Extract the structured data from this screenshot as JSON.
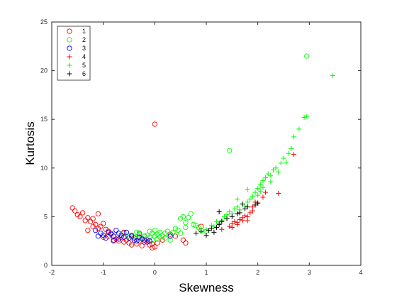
{
  "chart_data": {
    "type": "scatter",
    "title": "",
    "xlabel": "Skewness",
    "ylabel": "Kurtosis",
    "xlim": [
      -2,
      4
    ],
    "ylim": [
      0,
      25
    ],
    "x_ticks": [
      "-2",
      "-1",
      "0",
      "1",
      "2",
      "3",
      "4"
    ],
    "y_ticks": [
      "0",
      "5",
      "10",
      "15",
      "20",
      "25"
    ],
    "grid": false,
    "legend_position": "top-left",
    "series": [
      {
        "name": "1",
        "marker": "circle",
        "color": "#ff0000",
        "points": [
          [
            -1.6,
            5.9
          ],
          [
            -1.55,
            5.6
          ],
          [
            -1.5,
            5.2
          ],
          [
            -1.45,
            5.0
          ],
          [
            -1.4,
            5.4
          ],
          [
            -1.35,
            4.6
          ],
          [
            -1.3,
            4.9
          ],
          [
            -1.25,
            4.5
          ],
          [
            -1.2,
            4.8
          ],
          [
            -1.15,
            4.2
          ],
          [
            -1.1,
            5.3
          ],
          [
            -1.05,
            4.0
          ],
          [
            -1.2,
            4.0
          ],
          [
            -1.0,
            4.3
          ],
          [
            -1.1,
            3.8
          ],
          [
            -1.3,
            3.6
          ],
          [
            -0.95,
            3.7
          ],
          [
            -0.9,
            3.5
          ],
          [
            -0.85,
            3.3
          ],
          [
            -0.8,
            3.0
          ],
          [
            -0.75,
            2.7
          ],
          [
            -0.7,
            2.5
          ],
          [
            -0.65,
            2.9
          ],
          [
            -0.6,
            2.4
          ],
          [
            -0.55,
            2.6
          ],
          [
            -0.5,
            2.3
          ],
          [
            -0.45,
            2.1
          ],
          [
            -0.4,
            2.8
          ],
          [
            -0.35,
            2.2
          ],
          [
            -0.3,
            2.5
          ],
          [
            -0.25,
            2.0
          ],
          [
            -0.2,
            2.4
          ],
          [
            -0.15,
            2.6
          ],
          [
            -0.1,
            2.1
          ],
          [
            -0.05,
            2.2
          ],
          [
            0.0,
            1.9
          ],
          [
            0.05,
            2.3
          ],
          [
            -0.05,
            1.8
          ],
          [
            0.0,
            14.5
          ],
          [
            -0.3,
            3.3
          ],
          [
            -0.6,
            3.4
          ],
          [
            -0.9,
            3.0
          ],
          [
            -1.0,
            2.9
          ],
          [
            -0.8,
            2.5
          ],
          [
            0.15,
            2.6
          ],
          [
            0.3,
            3.2
          ],
          [
            0.4,
            3.0
          ],
          [
            0.55,
            2.6
          ],
          [
            0.6,
            2.3
          ],
          [
            0.9,
            4.0
          ],
          [
            -0.2,
            3.0
          ],
          [
            -0.45,
            3.1
          ]
        ]
      },
      {
        "name": "2",
        "marker": "circle",
        "color": "#00ff00",
        "points": [
          [
            -0.6,
            3.3
          ],
          [
            -0.5,
            3.0
          ],
          [
            -0.4,
            2.9
          ],
          [
            -0.35,
            3.4
          ],
          [
            -0.3,
            3.2
          ],
          [
            -0.25,
            2.8
          ],
          [
            -0.2,
            3.0
          ],
          [
            -0.15,
            3.1
          ],
          [
            -0.1,
            3.5
          ],
          [
            -0.1,
            2.9
          ],
          [
            -0.05,
            3.3
          ],
          [
            0.0,
            3.0
          ],
          [
            0.0,
            3.6
          ],
          [
            0.05,
            2.7
          ],
          [
            0.05,
            3.2
          ],
          [
            0.1,
            3.4
          ],
          [
            0.1,
            2.9
          ],
          [
            0.15,
            3.1
          ],
          [
            0.2,
            3.3
          ],
          [
            0.2,
            2.8
          ],
          [
            0.25,
            3.5
          ],
          [
            0.3,
            3.0
          ],
          [
            0.35,
            3.4
          ],
          [
            0.4,
            3.8
          ],
          [
            0.45,
            3.6
          ],
          [
            0.5,
            3.3
          ],
          [
            0.5,
            4.8
          ],
          [
            0.55,
            5.0
          ],
          [
            0.6,
            4.4
          ],
          [
            0.65,
            4.9
          ],
          [
            0.7,
            5.3
          ],
          [
            0.75,
            4.2
          ],
          [
            0.8,
            4.1
          ],
          [
            0.85,
            3.9
          ],
          [
            0.9,
            3.6
          ],
          [
            1.0,
            3.5
          ],
          [
            0.3,
            2.6
          ],
          [
            -0.05,
            2.6
          ],
          [
            0.6,
            3.9
          ],
          [
            1.45,
            11.8
          ],
          [
            2.95,
            21.5
          ]
        ]
      },
      {
        "name": "3",
        "marker": "circle",
        "color": "#0000ff",
        "points": [
          [
            -1.1,
            3.0
          ],
          [
            -1.05,
            3.3
          ],
          [
            -1.0,
            3.1
          ],
          [
            -0.95,
            2.8
          ],
          [
            -0.9,
            3.4
          ],
          [
            -0.85,
            3.2
          ],
          [
            -0.8,
            3.0
          ],
          [
            -0.75,
            3.6
          ],
          [
            -0.7,
            3.3
          ],
          [
            -0.7,
            2.7
          ],
          [
            -0.65,
            3.1
          ],
          [
            -0.6,
            2.9
          ],
          [
            -0.55,
            3.4
          ],
          [
            -0.5,
            2.8
          ],
          [
            -0.45,
            3.0
          ],
          [
            -0.4,
            2.6
          ],
          [
            -0.35,
            2.5
          ],
          [
            -0.3,
            2.9
          ],
          [
            -0.25,
            2.7
          ],
          [
            -0.2,
            2.6
          ],
          [
            -0.15,
            2.4
          ],
          [
            -0.1,
            2.5
          ],
          [
            -1.15,
            3.6
          ],
          [
            -0.8,
            2.6
          ],
          [
            0.3,
            3.0
          ]
        ]
      },
      {
        "name": "4",
        "marker": "plus",
        "color": "#ff0000",
        "points": [
          [
            1.45,
            4.0
          ],
          [
            1.5,
            4.3
          ],
          [
            1.55,
            4.5
          ],
          [
            1.6,
            4.2
          ],
          [
            1.65,
            4.7
          ],
          [
            1.7,
            4.9
          ],
          [
            1.75,
            5.1
          ],
          [
            1.8,
            5.0
          ],
          [
            1.8,
            4.6
          ],
          [
            1.85,
            5.4
          ],
          [
            1.9,
            5.6
          ],
          [
            1.5,
            3.9
          ],
          [
            1.6,
            4.4
          ],
          [
            1.7,
            4.6
          ],
          [
            1.9,
            6.0
          ],
          [
            1.95,
            6.5
          ],
          [
            2.0,
            6.4
          ],
          [
            2.1,
            7.0
          ],
          [
            2.15,
            7.5
          ],
          [
            2.4,
            7.4
          ],
          [
            2.7,
            11.4
          ],
          [
            1.3,
            3.7
          ]
        ]
      },
      {
        "name": "5",
        "marker": "plus",
        "color": "#00ff00",
        "points": [
          [
            1.0,
            3.7
          ],
          [
            1.1,
            4.1
          ],
          [
            1.15,
            4.0
          ],
          [
            1.2,
            4.5
          ],
          [
            1.3,
            4.6
          ],
          [
            1.35,
            5.0
          ],
          [
            1.4,
            5.2
          ],
          [
            1.45,
            5.5
          ],
          [
            1.5,
            5.3
          ],
          [
            1.55,
            5.8
          ],
          [
            1.6,
            6.0
          ],
          [
            1.65,
            5.7
          ],
          [
            1.7,
            6.3
          ],
          [
            1.75,
            6.1
          ],
          [
            1.8,
            6.5
          ],
          [
            1.85,
            6.8
          ],
          [
            1.9,
            7.1
          ],
          [
            1.95,
            7.5
          ],
          [
            2.0,
            7.2
          ],
          [
            2.0,
            7.9
          ],
          [
            2.05,
            8.3
          ],
          [
            2.1,
            8.0
          ],
          [
            2.1,
            8.7
          ],
          [
            2.15,
            9.0
          ],
          [
            2.2,
            9.4
          ],
          [
            2.25,
            9.2
          ],
          [
            2.3,
            9.8
          ],
          [
            2.35,
            10.0
          ],
          [
            2.4,
            9.6
          ],
          [
            2.45,
            10.5
          ],
          [
            2.5,
            11.0
          ],
          [
            2.55,
            10.6
          ],
          [
            2.6,
            11.5
          ],
          [
            2.65,
            12.0
          ],
          [
            2.7,
            13.2
          ],
          [
            2.8,
            14.0
          ],
          [
            2.9,
            15.2
          ],
          [
            2.95,
            15.3
          ],
          [
            3.45,
            19.5
          ],
          [
            1.6,
            6.8
          ],
          [
            1.8,
            7.8
          ],
          [
            2.05,
            7.6
          ],
          [
            2.25,
            8.6
          ],
          [
            1.25,
            4.3
          ]
        ]
      },
      {
        "name": "6",
        "marker": "plus",
        "color": "#000000",
        "points": [
          [
            0.8,
            3.3
          ],
          [
            0.9,
            3.5
          ],
          [
            1.0,
            3.1
          ],
          [
            1.05,
            3.6
          ],
          [
            1.1,
            3.8
          ],
          [
            1.15,
            3.4
          ],
          [
            1.2,
            3.9
          ],
          [
            1.25,
            4.2
          ],
          [
            1.3,
            4.5
          ],
          [
            1.4,
            4.8
          ],
          [
            1.5,
            5.0
          ],
          [
            1.6,
            5.3
          ],
          [
            1.65,
            5.4
          ],
          [
            1.75,
            5.8
          ],
          [
            1.8,
            6.0
          ],
          [
            1.7,
            6.3
          ],
          [
            1.95,
            6.2
          ],
          [
            2.0,
            6.4
          ],
          [
            1.25,
            5.5
          ]
        ]
      }
    ]
  }
}
